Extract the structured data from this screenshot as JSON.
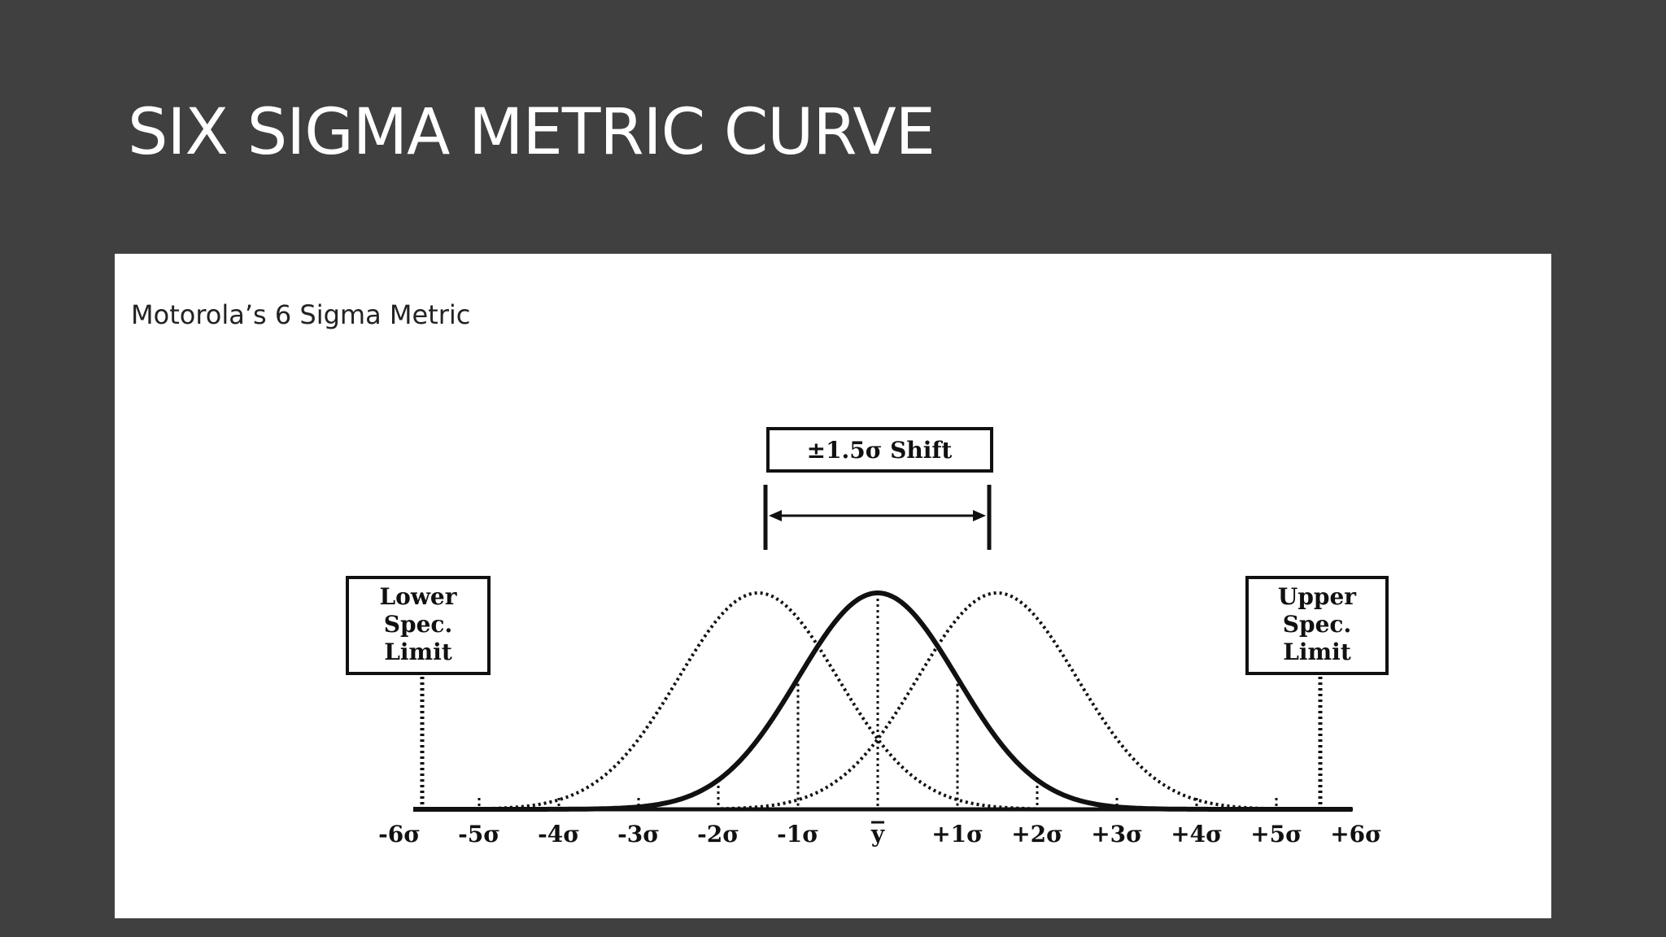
{
  "slide": {
    "title": "SIX SIGMA METRIC CURVE"
  },
  "figure": {
    "caption": "Motorola’s 6 Sigma Metric",
    "shift_label": "±1.5σ Shift",
    "lower_spec_limit": [
      "Lower",
      "Spec.",
      "Limit"
    ],
    "upper_spec_limit": [
      "Upper",
      "Spec.",
      "Limit"
    ],
    "axis_ticks": [
      "-6σ",
      "-5σ",
      "-4σ",
      "-3σ",
      "-2σ",
      "-1σ",
      "y",
      "+1σ",
      "+2σ",
      "+3σ",
      "+4σ",
      "+5σ",
      "+6σ"
    ],
    "center_tick_overline": true,
    "shift_sigma": 1.5,
    "spec_limits_sigma": [
      -6,
      6
    ],
    "colors": {
      "background": "#404040",
      "panel": "#ffffff",
      "ink": "#111111"
    }
  }
}
